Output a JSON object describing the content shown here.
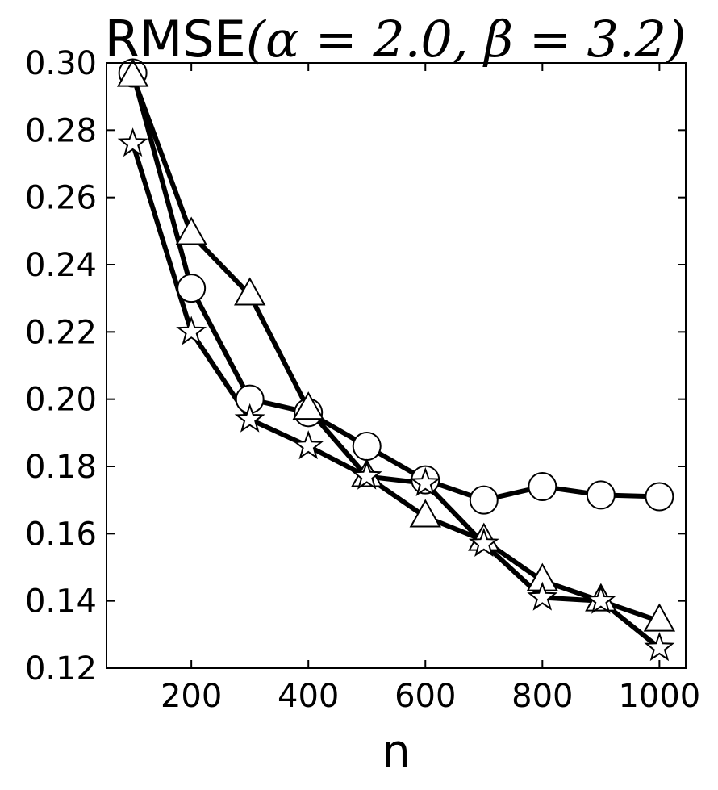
{
  "chart_data": {
    "type": "line",
    "title": "RMSE",
    "title_math": "(α = 2.0, β = 3.2)",
    "xlabel": "n",
    "ylabel": "",
    "x": [
      100,
      200,
      300,
      400,
      500,
      600,
      700,
      800,
      900,
      1000
    ],
    "xlim": [
      55,
      1045
    ],
    "ylim": [
      0.12,
      0.3
    ],
    "xticks": [
      200,
      400,
      600,
      800,
      1000
    ],
    "yticks": [
      0.12,
      0.14,
      0.16,
      0.18,
      0.2,
      0.22,
      0.24,
      0.26,
      0.28,
      0.3
    ],
    "grid": false,
    "line_color": "#000000",
    "marker_fill": "#ffffff",
    "series": [
      {
        "marker": "circle",
        "values": [
          0.297,
          0.233,
          0.2,
          0.196,
          0.186,
          0.176,
          0.17,
          0.174,
          0.1715,
          0.171
        ]
      },
      {
        "marker": "triangle",
        "values": [
          0.296,
          0.249,
          0.231,
          0.197,
          0.177,
          0.165,
          0.158,
          0.146,
          0.14,
          0.134
        ]
      },
      {
        "marker": "star",
        "values": [
          0.276,
          0.22,
          0.194,
          0.186,
          0.177,
          0.175,
          0.157,
          0.141,
          0.14,
          0.126
        ]
      }
    ]
  }
}
